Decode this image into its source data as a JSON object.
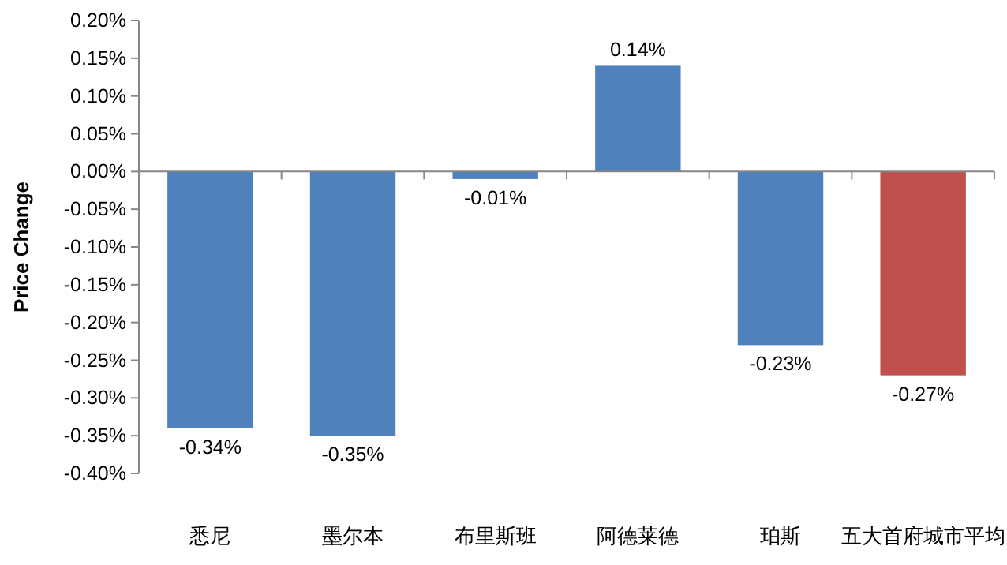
{
  "chart_data": {
    "type": "bar",
    "ylabel": "Price Change",
    "categories": [
      "悉尼",
      "墨尔本",
      "布里斯班",
      "阿德莱德",
      "珀斯",
      "五大首府城市平均"
    ],
    "values": [
      -0.34,
      -0.35,
      -0.01,
      0.14,
      -0.23,
      -0.27
    ],
    "colors": [
      "#4f81bd",
      "#4f81bd",
      "#4f81bd",
      "#4f81bd",
      "#4f81bd",
      "#c0504d"
    ],
    "value_labels": [
      "-0.34%",
      "-0.35%",
      "-0.01%",
      "0.14%",
      "-0.23%",
      "-0.27%"
    ],
    "ylim": [
      -0.4,
      0.2
    ],
    "yticks": [
      {
        "value": 0.2,
        "label": "0.20%"
      },
      {
        "value": 0.15,
        "label": "0.15%"
      },
      {
        "value": 0.1,
        "label": "0.10%"
      },
      {
        "value": 0.05,
        "label": "0.05%"
      },
      {
        "value": 0,
        "label": "0.00%"
      },
      {
        "value": -0.05,
        "label": "-0.05%"
      },
      {
        "value": -0.1,
        "label": "-0.10%"
      },
      {
        "value": -0.15,
        "label": "-0.15%"
      },
      {
        "value": -0.2,
        "label": "-0.20%"
      },
      {
        "value": -0.25,
        "label": "-0.25%"
      },
      {
        "value": -0.3,
        "label": "-0.30%"
      },
      {
        "value": -0.35,
        "label": "-0.35%"
      },
      {
        "value": -0.4,
        "label": "-0.40%"
      }
    ]
  }
}
